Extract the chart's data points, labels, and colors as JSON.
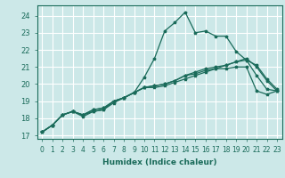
{
  "title": "",
  "xlabel": "Humidex (Indice chaleur)",
  "ylabel": "",
  "bg_color": "#cce8e8",
  "grid_color": "#ffffff",
  "line_color": "#1a6b5a",
  "xlim": [
    -0.5,
    23.5
  ],
  "ylim": [
    16.8,
    24.6
  ],
  "yticks": [
    17,
    18,
    19,
    20,
    21,
    22,
    23,
    24
  ],
  "xticks": [
    0,
    1,
    2,
    3,
    4,
    5,
    6,
    7,
    8,
    9,
    10,
    11,
    12,
    13,
    14,
    15,
    16,
    17,
    18,
    19,
    20,
    21,
    22,
    23
  ],
  "series": [
    [
      17.2,
      17.6,
      18.2,
      18.4,
      18.1,
      18.4,
      18.5,
      18.9,
      19.2,
      19.5,
      20.4,
      21.5,
      23.1,
      23.6,
      24.2,
      23.0,
      23.1,
      22.8,
      22.8,
      21.9,
      21.4,
      20.5,
      19.7,
      19.6
    ],
    [
      17.2,
      17.6,
      18.2,
      18.4,
      18.2,
      18.4,
      18.5,
      19.0,
      19.2,
      19.5,
      19.8,
      19.8,
      19.9,
      20.1,
      20.3,
      20.5,
      20.7,
      20.9,
      21.1,
      21.3,
      21.5,
      21.0,
      20.2,
      19.6
    ],
    [
      17.2,
      17.6,
      18.2,
      18.4,
      18.2,
      18.5,
      18.6,
      19.0,
      19.2,
      19.5,
      19.8,
      19.9,
      20.0,
      20.2,
      20.5,
      20.7,
      20.9,
      21.0,
      21.1,
      21.3,
      21.4,
      21.1,
      20.3,
      19.7
    ],
    [
      17.2,
      17.6,
      18.2,
      18.4,
      18.2,
      18.5,
      18.6,
      19.0,
      19.2,
      19.5,
      19.8,
      19.9,
      20.0,
      20.2,
      20.5,
      20.6,
      20.8,
      20.9,
      20.9,
      21.0,
      21.0,
      19.6,
      19.4,
      19.6
    ]
  ],
  "xlabel_fontsize": 6.5,
  "tick_fontsize": 5.5,
  "ytick_fontsize": 6.0,
  "linewidth": 0.9,
  "markersize": 2.5
}
